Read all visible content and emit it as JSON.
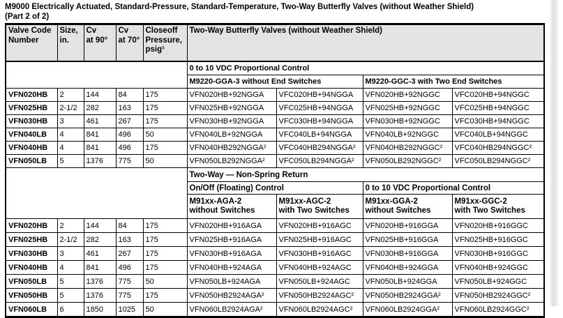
{
  "page": {
    "title": "M9000 Electrically Actuated, Standard-Pressure, Standard-Temperature, Two-Way Butterfly Valves (without Weather Shield)\n(Part 2 of 2)"
  },
  "table": {
    "columns": {
      "valve_code": "Valve Code\nNumber",
      "size": "Size,\nin.",
      "cv90": "Cv\nat 90°",
      "cv70": "Cv\nat 70°",
      "closeoff": "Closeoff\nPressure,\npsig¹",
      "product_group": "Two-Way Butterfly Valves (without Weather Shield)"
    },
    "section1": {
      "control_header": "0 to 10 VDC Proportional Control",
      "subgroup_left": "M9220-GGA-3 without End Switches",
      "subgroup_right": "M9220-GGC-3 with Two End Switches",
      "rows": [
        [
          "VFN020HB",
          "2",
          "144",
          "84",
          "175",
          "VFN020HB+92NGGA",
          "VFC020HB+94NGGA",
          "VFN020HB+92NGGC",
          "VFC020HB+94NGGC"
        ],
        [
          "VFN025HB",
          "2-1/2",
          "282",
          "163",
          "175",
          "VFN025HB+92NGGA",
          "VFC025HB+94NGGA",
          "VFN025HB+92NGGC",
          "VFC025HB+94NGGC"
        ],
        [
          "VFN030HB",
          "3",
          "461",
          "267",
          "175",
          "VFN030HB+92NGGA",
          "VFC030HB+94NGGA",
          "VFN030HB+92NGGC",
          "VFC030HB+94NGGC"
        ],
        [
          "VFN040LB",
          "4",
          "841",
          "496",
          "50",
          "VFN040LB+92NGGA",
          "VFC040LB+94NGGA",
          "VFN040LB+92NGGC",
          "VFC040LB+94NGGC"
        ],
        [
          "VFN040HB",
          "4",
          "841",
          "496",
          "175",
          "VFN040HB292NGGA²",
          "VFC040HB294NGGA²",
          "VFN040HB292NGGC²",
          "VFC040HB294NGGC²"
        ],
        [
          "VFN050LB",
          "5",
          "1376",
          "775",
          "50",
          "VFN050LB292NGGA²",
          "VFC050LB294NGGA²",
          "VFN050LB292NGGC²",
          "VFC050LB294NGGC²"
        ]
      ]
    },
    "section2": {
      "band_header": "Two-Way — Non-Spring Return",
      "control_left": "On/Off (Floating) Control",
      "control_right": "0 to 10 VDC Proportional Control",
      "column_headers": [
        "M91xx-AGA-2\nwithout Switches",
        "M91xx-AGC-2\nwith Two Switches",
        "M91xx-GGA-2\nwithout Switches",
        "M91xx-GGC-2\nwith Two Switches"
      ],
      "rows": [
        [
          "VFN020HB",
          "2",
          "144",
          "84",
          "175",
          "VFN020HB+916AGA",
          "VFN020HB+916AGC",
          "VFN020HB+916GGA",
          "VFN020HB+916GGC"
        ],
        [
          "VFN025HB",
          "2-1/2",
          "282",
          "163",
          "175",
          "VFN025HB+916AGA",
          "VFN025HB+916AGC",
          "VFN025HB+916GGA",
          "VFN025HB+916GGC"
        ],
        [
          "VFN030HB",
          "3",
          "461",
          "267",
          "175",
          "VFN030HB+916AGA",
          "VFN030HB+916AGC",
          "VFN030HB+916GGA",
          "VFN030HB+916GGC"
        ],
        [
          "VFN040HB",
          "4",
          "841",
          "496",
          "175",
          "VFN040HB+924AGA",
          "VFN040HB+924AGC",
          "VFN040HB+924GGA",
          "VFN040HB+924GGC"
        ],
        [
          "VFN050LB",
          "5",
          "1376",
          "775",
          "50",
          "VFN050LB+924AGA",
          "VFN050LB+924AGC",
          "VFN050LB+924GGA",
          "VFN050LB+924GGC"
        ],
        [
          "VFN050HB",
          "5",
          "1376",
          "775",
          "175",
          "VFN050HB2924AGA²",
          "VFN050HB2924AGC²",
          "VFN050HB2924GGA²",
          "VFN050HB2924GGC²"
        ],
        [
          "VFN060LB",
          "6",
          "1850",
          "1025",
          "50",
          "VFN060LB2924AGA²",
          "VFN060LB2924AGC²",
          "VFN060LB2924GGA²",
          "VFN060LB2924GGC²"
        ]
      ]
    }
  }
}
